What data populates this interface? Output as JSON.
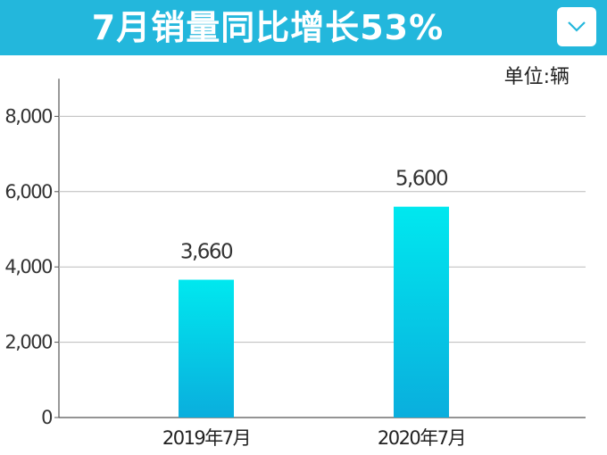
{
  "header": {
    "title": "7月销量同比增长53%",
    "dropdown_icon": "chevron-down-icon"
  },
  "colors": {
    "banner": "#23b7dc",
    "bar_top": "#00e8ef",
    "bar_bottom": "#0aaedd"
  },
  "chart_data": {
    "type": "bar",
    "unit": "单位:辆",
    "categories": [
      "2019年7月",
      "2020年7月"
    ],
    "values": [
      3660,
      5600
    ],
    "value_labels": [
      "3,660",
      "5,600"
    ],
    "yticks": [
      0,
      2000,
      4000,
      6000,
      8000
    ],
    "ytick_labels": [
      "0",
      "2,000",
      "4,000",
      "6,000",
      "8,000"
    ],
    "ylim": [
      0,
      9000
    ],
    "grid": true
  }
}
